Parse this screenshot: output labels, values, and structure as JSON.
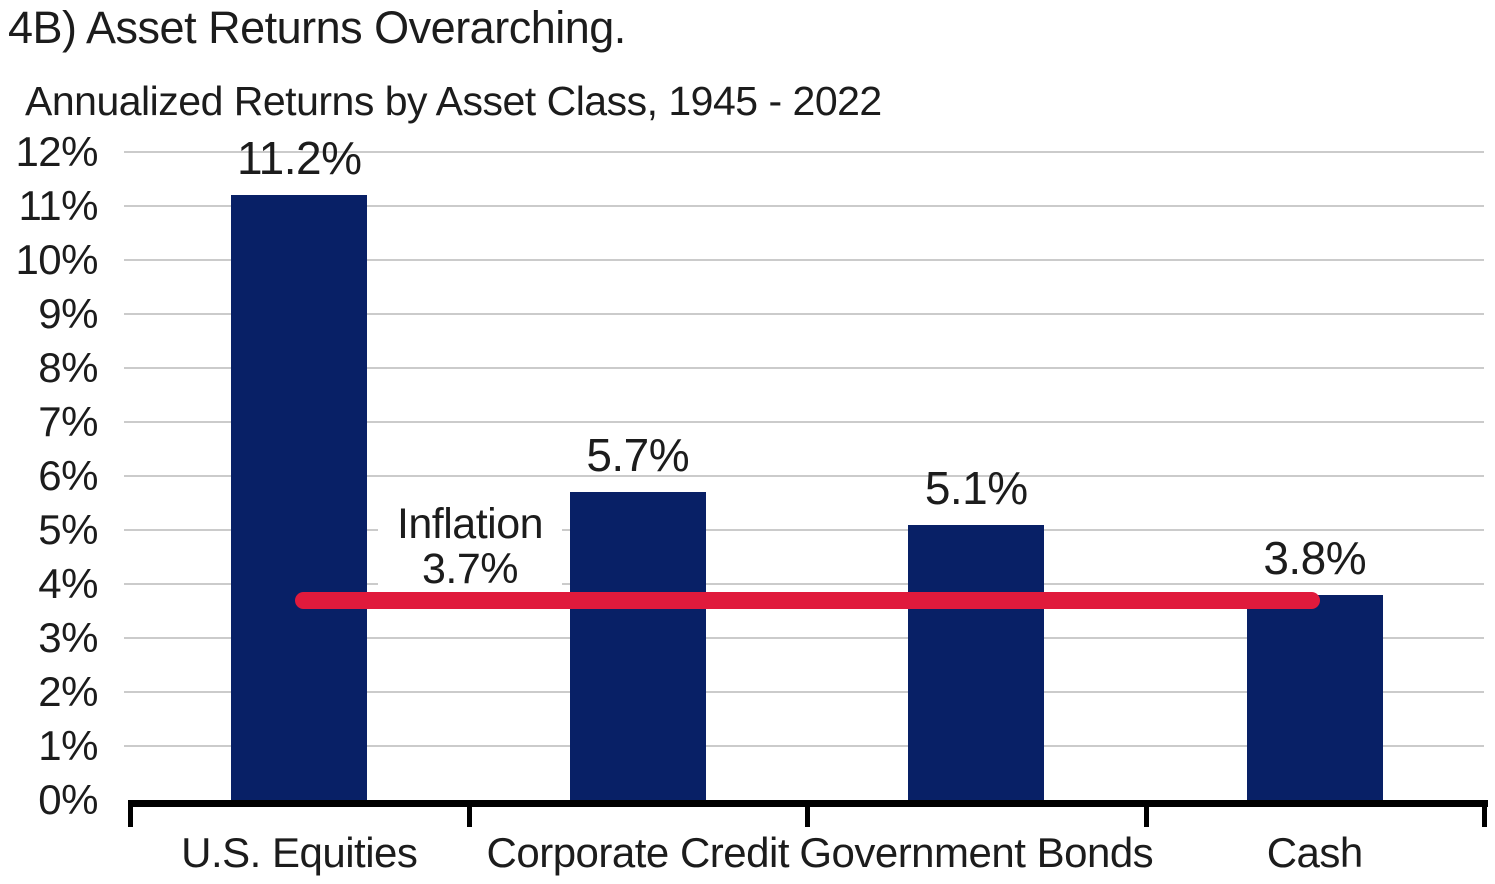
{
  "chart_data": {
    "type": "bar",
    "title": "4B) Asset Returns Overarching.",
    "subtitle": "Annualized Returns by Asset Class, 1945 - 2022",
    "categories": [
      "U.S. Equities",
      "Corporate Credit",
      "Government Bonds",
      "Cash"
    ],
    "values": [
      11.2,
      5.7,
      5.1,
      3.8
    ],
    "value_labels": [
      "11.2%",
      "5.7%",
      "5.1%",
      "3.8%"
    ],
    "y_tick_labels": [
      "0%",
      "1%",
      "2%",
      "3%",
      "4%",
      "5%",
      "6%",
      "7%",
      "8%",
      "9%",
      "10%",
      "11%",
      "12%"
    ],
    "ylim": [
      0,
      12
    ],
    "grid": "horizontal",
    "legend": "none",
    "reference_line": {
      "label": "Inflation",
      "value_label": "3.7%",
      "value": 3.7,
      "color": "#e01a3c"
    },
    "colors": {
      "bar": "#082066",
      "gridline": "#cbcbcb",
      "axis": "#000000",
      "text": "#1c1c1c"
    }
  }
}
